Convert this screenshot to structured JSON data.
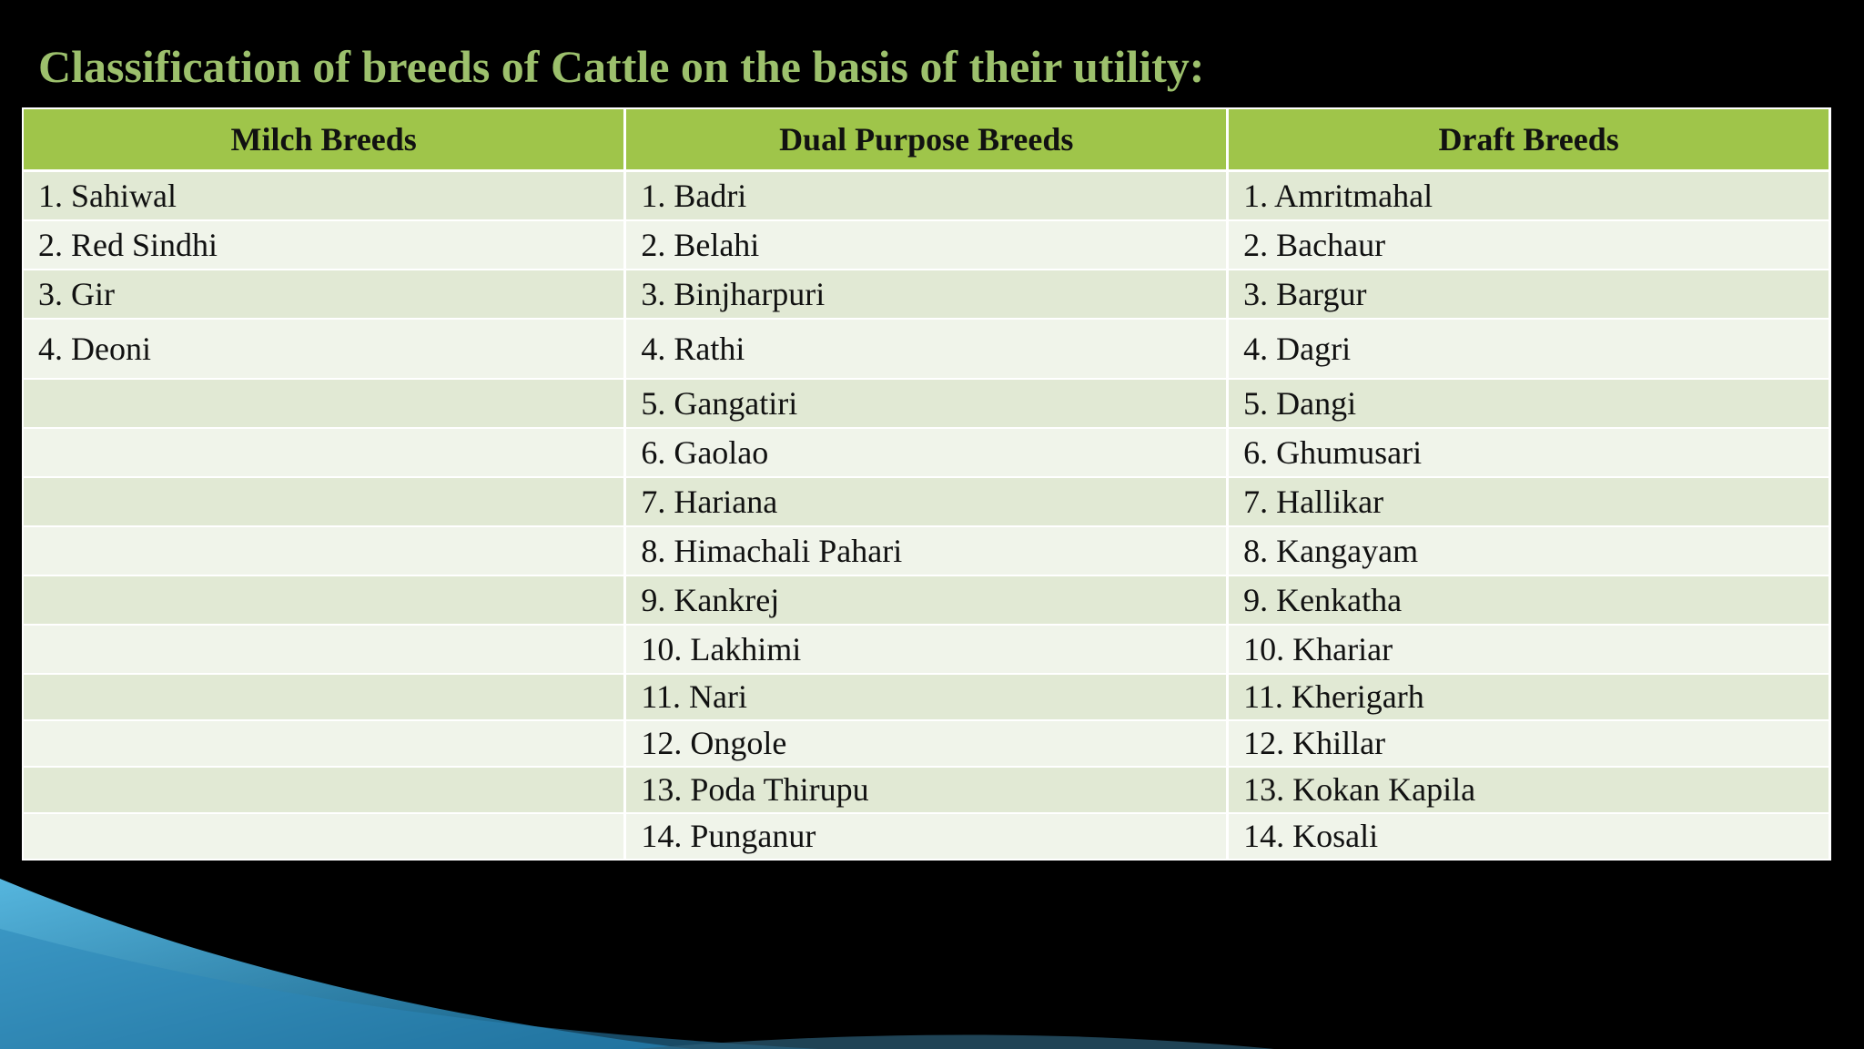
{
  "slide": {
    "title": "Classification of breeds of Cattle on the basis of their utility:",
    "colors": {
      "background": "#000000",
      "title": "#9cc06c",
      "header_fill": "#9fc54a",
      "row_odd": "#e1e9d4",
      "row_even": "#f0f4ea",
      "accent_swoosh": "#2f8fbf"
    }
  },
  "table": {
    "headers": [
      "Milch Breeds",
      "Dual Purpose Breeds",
      "Draft Breeds"
    ],
    "rows": [
      [
        "1. Sahiwal",
        "1. Badri",
        "1. Amritmahal"
      ],
      [
        "2. Red Sindhi",
        "2. Belahi",
        "2. Bachaur"
      ],
      [
        "3. Gir",
        "3. Binjharpuri",
        "3. Bargur"
      ],
      [
        "4. Deoni",
        "4. Rathi",
        "4. Dagri"
      ],
      [
        "",
        "5. Gangatiri",
        "5. Dangi"
      ],
      [
        "",
        "6. Gaolao",
        "6. Ghumusari"
      ],
      [
        "",
        "7. Hariana",
        "7. Hallikar"
      ],
      [
        "",
        "8. Himachali Pahari",
        "8. Kangayam"
      ],
      [
        "",
        "9. Kankrej",
        "9. Kenkatha"
      ],
      [
        "",
        "10. Lakhimi",
        "10. Khariar"
      ],
      [
        "",
        "11. Nari",
        "11. Kherigarh"
      ],
      [
        "",
        "12. Ongole",
        "12. Khillar"
      ],
      [
        "",
        "13. Poda Thirupu",
        "13. Kokan Kapila"
      ],
      [
        "",
        "14. Punganur",
        "14. Kosali"
      ]
    ]
  }
}
